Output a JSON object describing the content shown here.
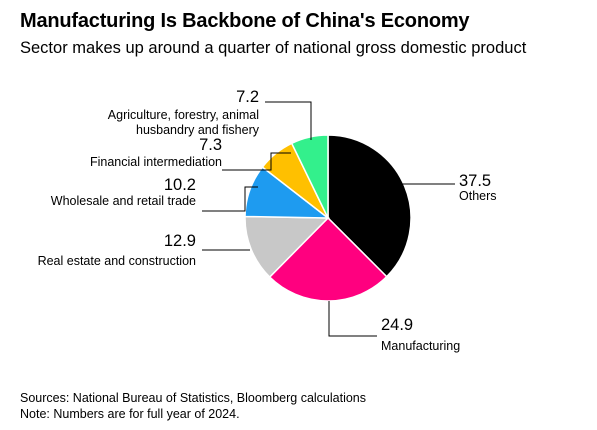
{
  "header": {
    "title": "Manufacturing Is Backbone of China's Economy",
    "subtitle": "Sector makes up around a quarter of national gross domestic product"
  },
  "footer": {
    "sources": "Sources: National Bureau of Statistics, Bloomberg calculations",
    "note": "Note: Numbers are for full year of 2024."
  },
  "chart_data": {
    "type": "pie",
    "title": "Manufacturing Is Backbone of China's Economy",
    "subtitle": "Sector makes up around a quarter of national gross domestic product",
    "start_angle_deg": 0,
    "direction": "clockwise",
    "slices": [
      {
        "key": "others",
        "label": "Others",
        "value": 37.5,
        "value_label": "37.5",
        "color": "#000000"
      },
      {
        "key": "manufacturing",
        "label": "Manufacturing",
        "value": 24.9,
        "value_label": "24.9",
        "color": "#ff007f"
      },
      {
        "key": "real-estate",
        "label": "Real estate and construction",
        "value": 12.9,
        "value_label": "12.9",
        "color": "#c8c8c8"
      },
      {
        "key": "wholesale",
        "label": "Wholesale and retail trade",
        "value": 10.2,
        "value_label": "10.2",
        "color": "#1e9bf0"
      },
      {
        "key": "financial",
        "label": "Financial intermediation",
        "value": 7.3,
        "value_label": "7.3",
        "color": "#ffc000"
      },
      {
        "key": "agriculture",
        "label": "Agriculture, forestry, animal husbandry and fishery",
        "label_lines": [
          "Agriculture, forestry, animal",
          "husbandry and fishery"
        ],
        "value": 7.2,
        "value_label": "7.2",
        "color": "#33f08c"
      }
    ]
  }
}
